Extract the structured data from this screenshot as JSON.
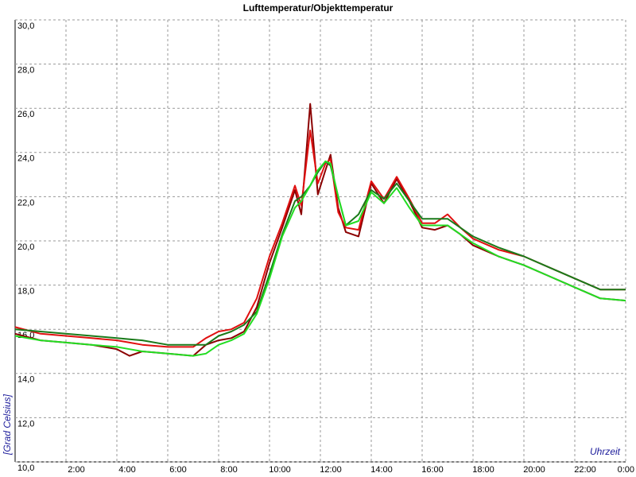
{
  "chart_data": {
    "type": "line",
    "title": "Lufttemperatur/Objekttemperatur",
    "y_label": "[Grad Celsius]",
    "x_label": "Uhrzeit",
    "x": [
      0,
      1,
      2,
      3,
      4,
      4.5,
      5,
      6,
      7,
      7.5,
      8,
      8.5,
      9,
      9.5,
      10,
      10.5,
      11,
      11.25,
      11.6,
      11.9,
      12.2,
      12.4,
      12.7,
      13,
      13.5,
      14,
      14.5,
      15,
      15.5,
      16,
      16.5,
      17,
      17.5,
      18,
      19,
      20,
      21,
      22,
      23,
      24
    ],
    "series": [
      {
        "color": "#8b0000",
        "values": [
          15.8,
          15.5,
          15.4,
          15.3,
          15.1,
          14.8,
          15.0,
          14.9,
          14.8,
          15.3,
          15.5,
          15.6,
          15.9,
          17.0,
          19.0,
          20.6,
          22.3,
          21.2,
          26.2,
          22.1,
          23.2,
          23.9,
          21.5,
          20.4,
          20.2,
          22.6,
          21.7,
          22.8,
          21.8,
          20.6,
          20.5,
          20.7,
          20.3,
          19.8,
          19.3,
          18.9,
          18.4,
          17.9,
          17.4,
          17.3
        ]
      },
      {
        "color": "#e01010",
        "values": [
          16.1,
          15.8,
          15.7,
          15.6,
          15.5,
          15.4,
          15.3,
          15.2,
          15.2,
          15.6,
          15.9,
          16.0,
          16.3,
          17.4,
          19.3,
          20.8,
          22.5,
          21.6,
          25.0,
          22.6,
          23.5,
          23.7,
          21.3,
          20.6,
          20.5,
          22.7,
          21.9,
          22.9,
          21.9,
          20.8,
          20.8,
          21.2,
          20.6,
          20.1,
          19.6,
          19.3,
          18.8,
          18.3,
          17.8,
          17.8
        ]
      },
      {
        "color": "#1a7a1a",
        "values": [
          16.0,
          15.9,
          15.8,
          15.7,
          15.6,
          15.55,
          15.5,
          15.3,
          15.3,
          15.3,
          15.7,
          15.9,
          16.2,
          16.8,
          18.5,
          20.3,
          21.8,
          22.0,
          22.5,
          23.1,
          23.6,
          23.4,
          22.0,
          20.7,
          21.2,
          22.3,
          21.9,
          22.6,
          21.8,
          21.0,
          21.0,
          21.0,
          20.6,
          20.2,
          19.7,
          19.3,
          18.8,
          18.3,
          17.8,
          17.8
        ]
      },
      {
        "color": "#22dd22",
        "values": [
          15.7,
          15.5,
          15.4,
          15.3,
          15.2,
          15.1,
          15.0,
          14.9,
          14.8,
          14.9,
          15.3,
          15.5,
          15.8,
          16.7,
          18.3,
          20.2,
          21.5,
          21.8,
          22.5,
          23.2,
          23.6,
          23.5,
          22.0,
          20.7,
          20.9,
          22.2,
          21.7,
          22.4,
          21.5,
          20.7,
          20.7,
          20.7,
          20.3,
          19.9,
          19.3,
          18.9,
          18.4,
          17.9,
          17.4,
          17.3
        ]
      }
    ],
    "xlim": [
      0,
      24
    ],
    "xticks": [
      {
        "value": 2,
        "label": "2:00"
      },
      {
        "value": 4,
        "label": "4:00"
      },
      {
        "value": 6,
        "label": "6:00"
      },
      {
        "value": 8,
        "label": "8:00"
      },
      {
        "value": 10,
        "label": "10:00"
      },
      {
        "value": 12,
        "label": "12:00"
      },
      {
        "value": 14,
        "label": "14:00"
      },
      {
        "value": 16,
        "label": "16:00"
      },
      {
        "value": 18,
        "label": "18:00"
      },
      {
        "value": 20,
        "label": "20:00"
      },
      {
        "value": 22,
        "label": "22:00"
      },
      {
        "value": 24,
        "label": "0:00"
      }
    ],
    "ylim": [
      10,
      30
    ],
    "yticks": [
      {
        "value": 10,
        "label": "10,0"
      },
      {
        "value": 12,
        "label": "12,0"
      },
      {
        "value": 14,
        "label": "14,0"
      },
      {
        "value": 16,
        "label": "16,0"
      },
      {
        "value": 18,
        "label": "18,0"
      },
      {
        "value": 20,
        "label": "20,0"
      },
      {
        "value": 22,
        "label": "22,0"
      },
      {
        "value": 24,
        "label": "24,0"
      },
      {
        "value": 26,
        "label": "26,0"
      },
      {
        "value": 28,
        "label": "28,0"
      },
      {
        "value": 30,
        "label": "30,0"
      }
    ],
    "grid": true
  }
}
